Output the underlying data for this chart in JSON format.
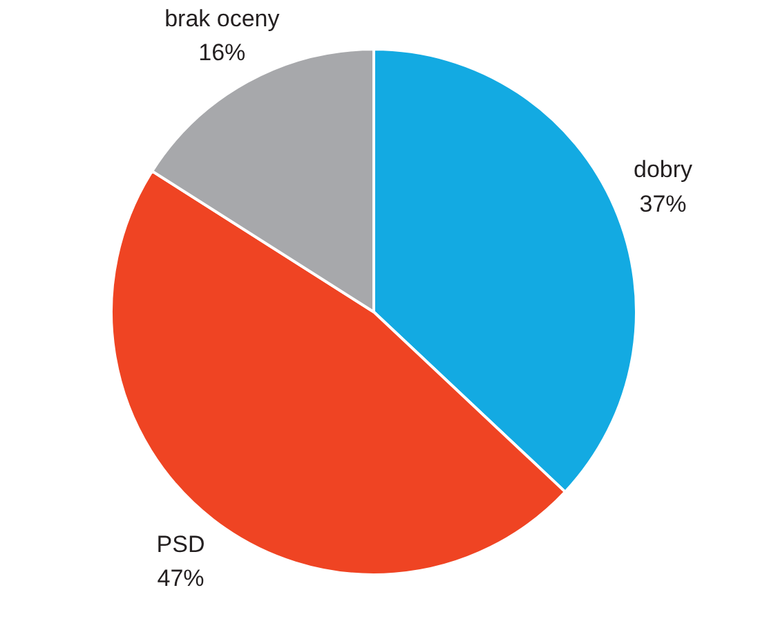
{
  "chart_data": {
    "type": "pie",
    "categories": [
      "dobry",
      "PSD",
      "brak oceny"
    ],
    "values": [
      37,
      47,
      16
    ],
    "colors": [
      "#13aae2",
      "#ef4423",
      "#a7a8ab"
    ],
    "value_labels": [
      "37%",
      "47%",
      "16%"
    ]
  }
}
